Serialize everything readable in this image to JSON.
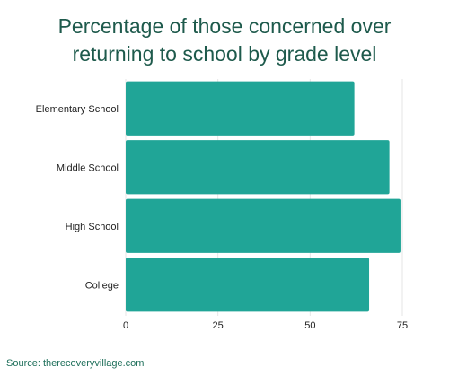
{
  "title_line1": "Percentage of those concerned over",
  "title_line2": "returning to school by grade level",
  "source": "Source: therecoveryvillage.com",
  "colors": {
    "bar": "#20a597",
    "title": "#1e5a4c",
    "grid": "#e6e6e6"
  },
  "chart_data": {
    "type": "bar",
    "orientation": "horizontal",
    "title": "Percentage of those concerned over returning to school by grade level",
    "categories": [
      "Elementary School",
      "Middle School",
      "High School",
      "College"
    ],
    "values": [
      62,
      71.5,
      74.5,
      66
    ],
    "xlim": [
      0,
      75
    ],
    "xticks": [
      0,
      25,
      50,
      75
    ],
    "grid": true
  }
}
